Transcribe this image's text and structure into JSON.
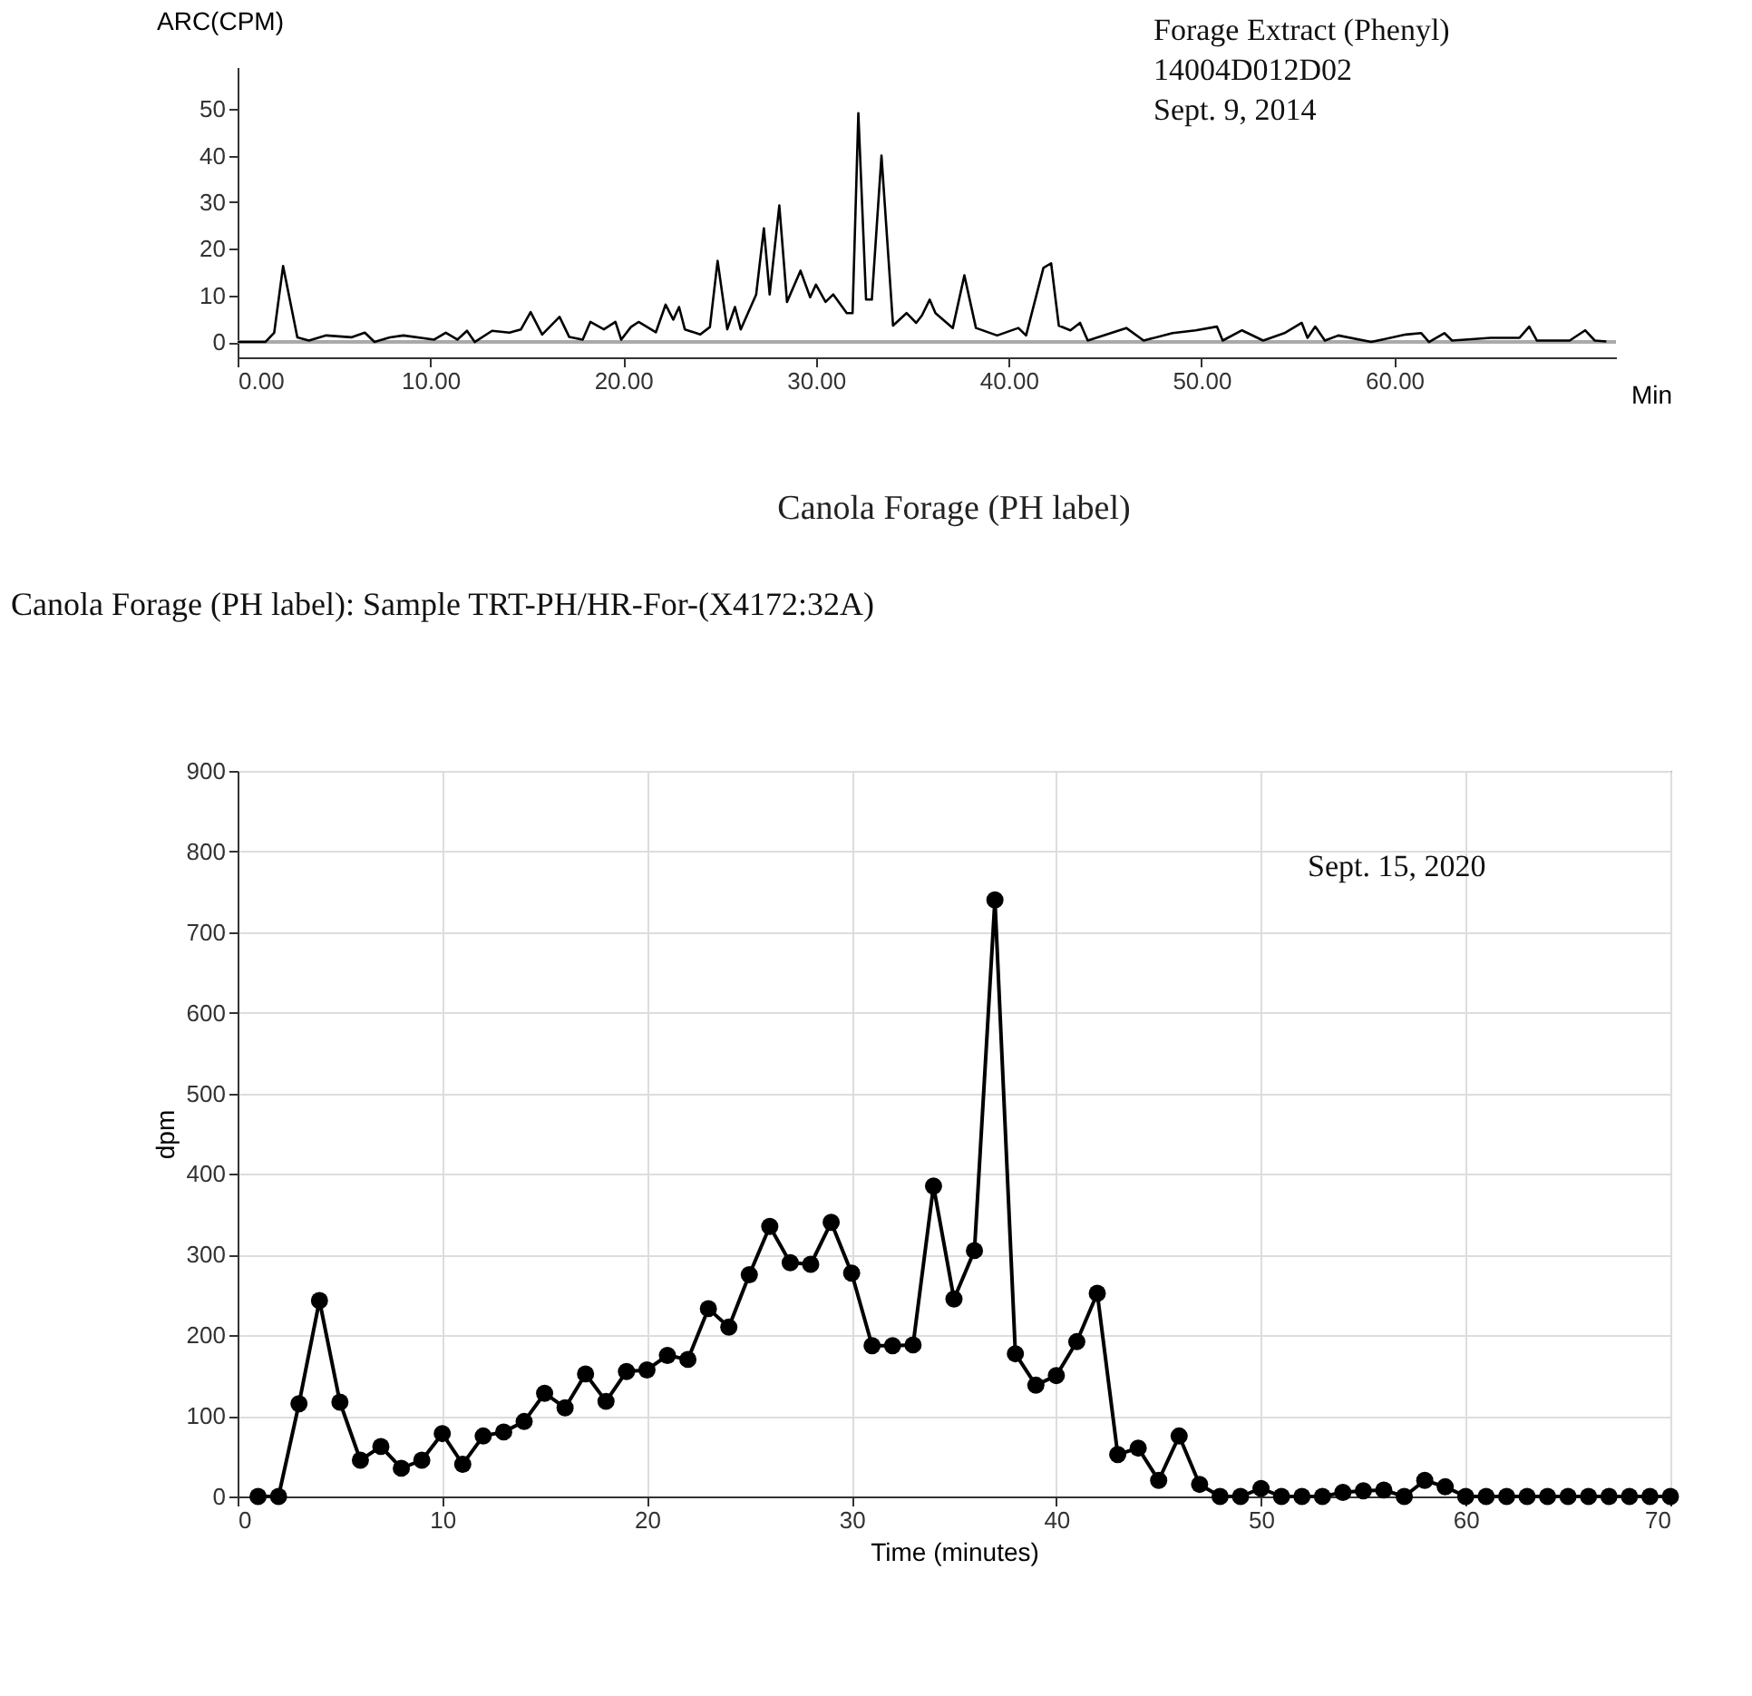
{
  "chart_data": [
    {
      "type": "line",
      "ylabel": "ARC(CPM)",
      "xlabel": "Min",
      "annotations": [
        "Forage Extract (Phenyl)",
        "14004D012D02",
        "Sept. 9, 2014"
      ],
      "x": [
        0,
        1.44,
        1.9,
        2.36,
        3.1,
        3.7,
        4.6,
        5.9,
        6.6,
        7.1,
        7.9,
        8.6,
        10.2,
        10.8,
        11.4,
        11.9,
        12.3,
        13.2,
        14.1,
        14.7,
        15.2,
        15.8,
        16.7,
        17.2,
        17.9,
        18.3,
        19.0,
        19.6,
        19.9,
        20.4,
        20.8,
        21.7,
        22.2,
        22.6,
        22.9,
        23.2,
        24.0,
        24.5,
        24.9,
        25.4,
        25.8,
        26.1,
        26.9,
        27.3,
        27.6,
        28.1,
        28.5,
        29.2,
        29.7,
        30.0,
        30.5,
        30.9,
        31.6,
        31.9,
        32.2,
        32.6,
        32.9,
        33.4,
        34.0,
        34.7,
        35.2,
        35.5,
        35.9,
        36.2,
        37.1,
        37.7,
        38.3,
        39.4,
        40.5,
        40.9,
        41.8,
        42.2,
        42.6,
        43.2,
        43.7,
        44.1,
        46.1,
        47.0,
        48.5,
        49.7,
        50.8,
        51.1,
        52.1,
        53.2,
        54.3,
        55.2,
        55.5,
        55.9,
        56.4,
        57.1,
        58.8,
        60.6,
        61.4,
        61.8,
        62.6,
        63.0,
        65.0,
        66.5,
        67.0,
        67.4,
        69.1,
        69.9,
        70.4,
        71.0
      ],
      "series": [
        {
          "color": "#000000",
          "values": [
            0,
            0,
            2,
            16.3,
            1,
            0.3,
            1.4,
            1,
            2,
            0,
            1,
            1.4,
            0.5,
            2,
            0.5,
            2.4,
            0,
            2.4,
            2,
            2.7,
            6.4,
            1.6,
            5.4,
            1.1,
            0.5,
            4.3,
            2.7,
            4.3,
            0.5,
            3.2,
            4.3,
            2.1,
            8,
            4.8,
            7.5,
            2.7,
            1.6,
            3.2,
            17.4,
            2.7,
            7.5,
            2.7,
            10.2,
            24.4,
            10.2,
            29.3,
            8.6,
            15.3,
            9.6,
            12.3,
            8.6,
            10.2,
            6.2,
            6.2,
            49.1,
            9.1,
            9.1,
            40,
            3.5,
            6.2,
            4.1,
            5.7,
            9.1,
            6.2,
            3,
            14.3,
            3,
            1.4,
            3,
            1.4,
            15.9,
            16.9,
            3.5,
            2.5,
            4.1,
            0.3,
            3,
            0.3,
            1.9,
            2.5,
            3.3,
            0.3,
            2.5,
            0.3,
            1.9,
            4.1,
            0.9,
            3.3,
            0.3,
            1.4,
            0,
            1.6,
            1.9,
            0,
            1.9,
            0.3,
            0.9,
            0.9,
            3.3,
            0.3,
            0.3,
            2.5,
            0.3,
            0.1
          ]
        }
      ],
      "xlim": [
        0,
        71.5
      ],
      "ylim": [
        -3.3,
        59
      ],
      "xticks": [
        {
          "value": 0,
          "label": "0.00"
        },
        {
          "value": 10,
          "label": "10.00"
        },
        {
          "value": 20,
          "label": "20.00"
        },
        {
          "value": 30,
          "label": "30.00"
        },
        {
          "value": 40,
          "label": "40.00"
        },
        {
          "value": 50,
          "label": "50.00"
        },
        {
          "value": 60,
          "label": "60.00"
        }
      ],
      "yticks": [
        0,
        10,
        20,
        30,
        40,
        50
      ],
      "ref_lines": [
        {
          "axis": "y",
          "value": 0,
          "color": "#aaaaaa"
        }
      ],
      "grid": false,
      "marker": "none",
      "line_style": "solid"
    },
    {
      "type": "line",
      "title": "Canola Forage (PH label)",
      "xlabel": "Time (minutes)",
      "ylabel": "dpm",
      "annotations": [
        "Canola Forage (PH label):  Sample TRT-PH/HR-For-(X4172:32A)",
        "Sept. 15, 2020"
      ],
      "x": [
        1,
        2,
        3,
        4,
        5,
        6,
        7,
        8,
        9,
        10,
        11,
        12,
        13,
        14,
        15,
        16,
        17,
        18,
        19,
        20,
        21,
        22,
        23,
        24,
        25,
        26,
        27,
        28,
        29,
        30,
        31,
        32,
        33,
        34,
        35,
        36,
        37,
        38,
        39,
        40,
        41,
        42,
        43,
        44,
        45,
        46,
        47,
        48,
        49,
        50,
        51,
        52,
        53,
        54,
        55,
        56,
        57,
        58,
        59,
        60,
        61,
        62,
        63,
        64,
        65,
        66,
        67,
        68,
        69,
        70
      ],
      "series": [
        {
          "color": "#000000",
          "values": [
            0,
            0,
            115,
            243,
            117,
            45,
            62,
            35,
            45,
            78,
            40,
            75,
            80,
            93,
            128,
            110,
            152,
            118,
            155,
            157,
            175,
            170,
            233,
            210,
            275,
            335,
            290,
            288,
            340,
            277,
            187,
            187,
            188,
            385,
            245,
            305,
            740,
            177,
            138,
            150,
            192,
            252,
            52,
            60,
            20,
            75,
            15,
            0,
            0,
            10,
            0,
            0,
            0,
            5,
            7,
            8,
            0,
            20,
            12,
            0,
            0,
            0,
            0,
            0,
            0,
            0,
            0,
            0,
            0,
            0
          ]
        }
      ],
      "xlim": [
        0,
        70
      ],
      "ylim": [
        0,
        900
      ],
      "xticks": [
        0,
        10,
        20,
        30,
        40,
        50,
        60,
        70
      ],
      "yticks": [
        0,
        100,
        200,
        300,
        400,
        500,
        600,
        700,
        800,
        900
      ],
      "grid": true,
      "marker": "circle",
      "line_style": "solid"
    }
  ]
}
